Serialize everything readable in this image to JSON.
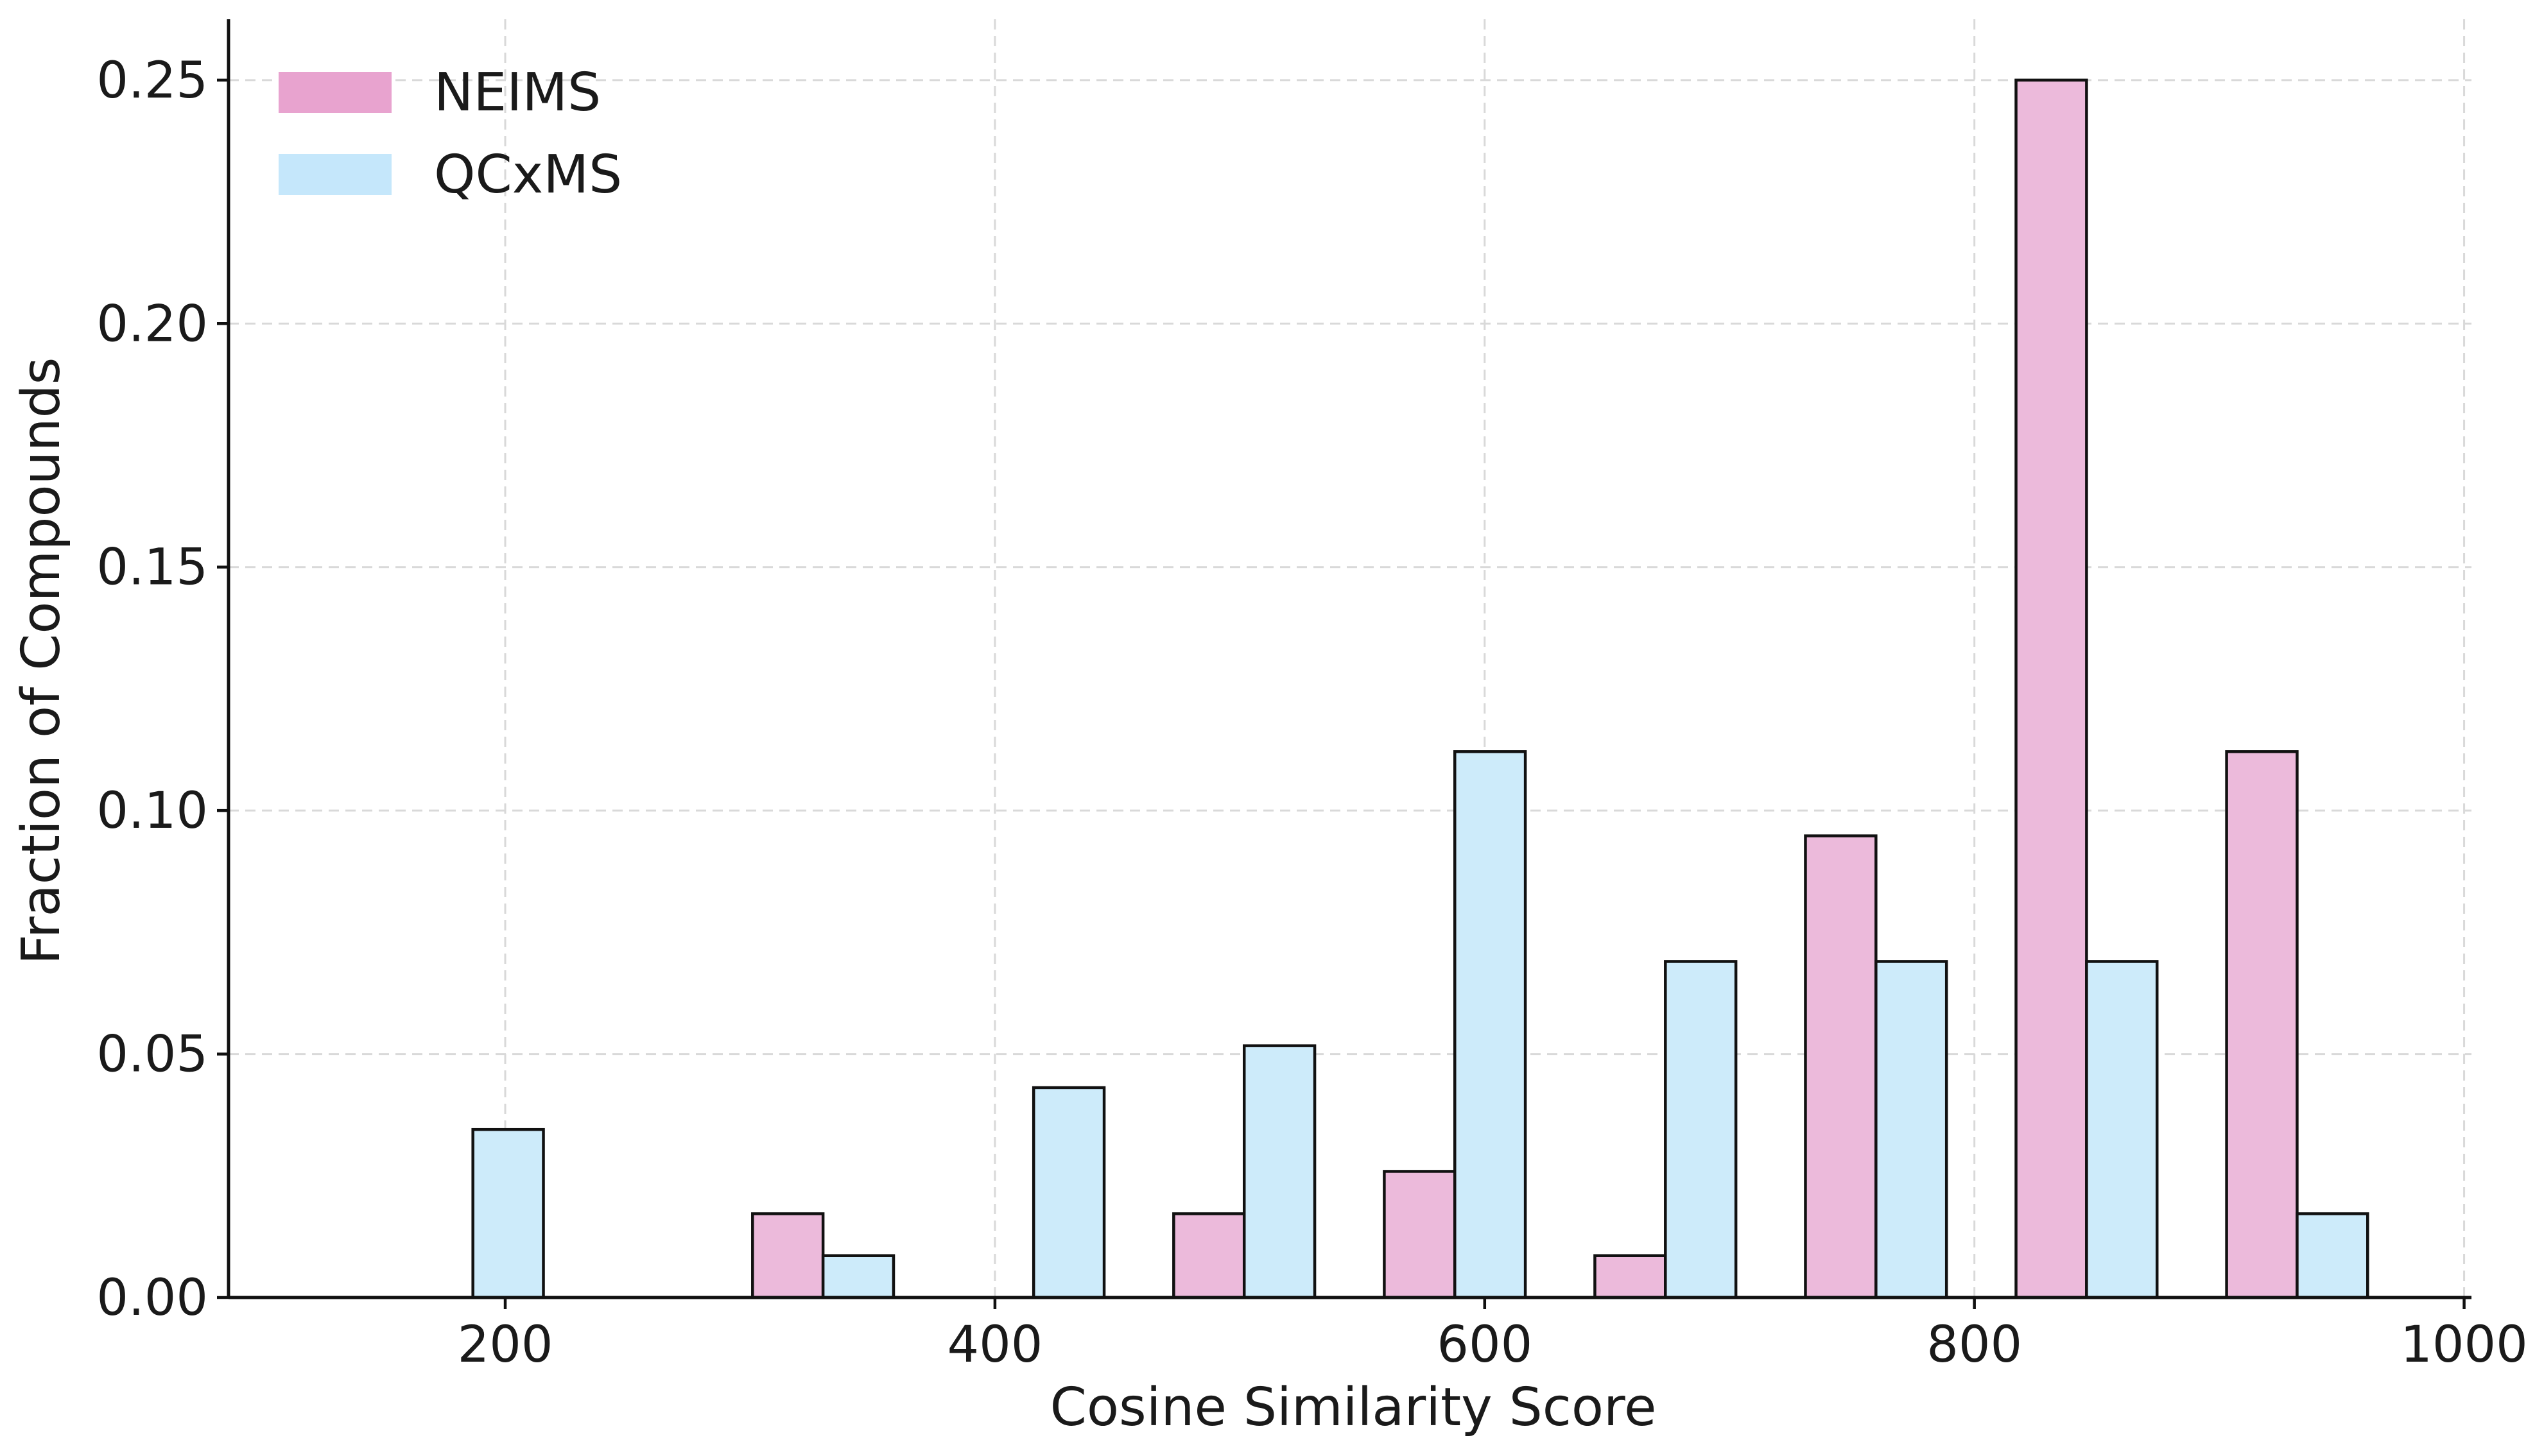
{
  "chart_data": {
    "type": "bar",
    "xlabel": "Cosine Similarity Score",
    "ylabel": "Fraction of Compounds",
    "xlim": [
      87,
      1003
    ],
    "ylim": [
      0,
      0.2625
    ],
    "xticks": [
      200,
      400,
      600,
      800,
      1000
    ],
    "xtick_labels": [
      "200",
      "400",
      "600",
      "800",
      "1000"
    ],
    "yticks": [
      0.0,
      0.05,
      0.1,
      0.15,
      0.2,
      0.25
    ],
    "ytick_labels": [
      "0.00",
      "0.05",
      "0.10",
      "0.15",
      "0.20",
      "0.25"
    ],
    "grid": true,
    "legend_position": "top-left",
    "categories": [
      158,
      244,
      301,
      387,
      473,
      559,
      645,
      731,
      817,
      903
    ],
    "bin_width": 28.8,
    "series": [
      {
        "name": "NEIMS",
        "color": "#ecbadb",
        "legend_color": "#e8a3cf",
        "values": [
          0.0,
          0.0,
          0.0172,
          0.0,
          0.0172,
          0.0259,
          0.0086,
          0.0948,
          0.25,
          0.1121
        ]
      },
      {
        "name": "QCxMS",
        "color": "#cdebfa",
        "legend_color": "#c5e7fb",
        "values": [
          0.0345,
          0.0,
          0.0086,
          0.0431,
          0.0517,
          0.1121,
          0.069,
          0.069,
          0.069,
          0.0172
        ]
      }
    ]
  }
}
